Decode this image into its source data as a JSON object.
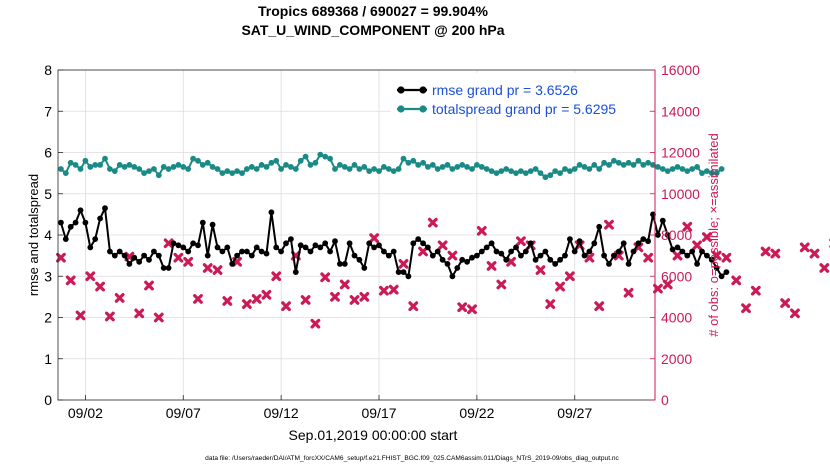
{
  "chart_data": {
    "type": "line",
    "title_line1": "Tropics 689368 / 690027 = 99.904%",
    "title_line2": "SAT_U_WIND_COMPONENT @ 200 hPa",
    "ylabel_left": "rmse and totalspread",
    "ylabel_right": "# of obs: o=possible; ×=assimilated",
    "xlabel": "Sep.01,2019 00:00:00 start",
    "footnote": "data file: /Users/raeder/DAI/ATM_forcXX/CAM6_setup/f.e21.FHIST_BGC.f09_025.CAM6assim.011/Diags_NTrS_2019-09/obs_diag_output.nc",
    "xlim": [
      0.6,
      31.1
    ],
    "ylim_left": [
      0,
      8
    ],
    "ylim_right": [
      0,
      16000
    ],
    "yticks_left": [
      "0",
      "1",
      "2",
      "3",
      "4",
      "5",
      "6",
      "7",
      "8"
    ],
    "yticks_right": [
      "0",
      "2000",
      "4000",
      "6000",
      "8000",
      "10000",
      "12000",
      "14000",
      "16000"
    ],
    "xticks": [
      {
        "day": 2,
        "label": "09/02"
      },
      {
        "day": 7,
        "label": "09/07"
      },
      {
        "day": 12,
        "label": "09/12"
      },
      {
        "day": 17,
        "label": "09/17"
      },
      {
        "day": 22,
        "label": "09/22"
      },
      {
        "day": 27,
        "label": "09/27"
      }
    ],
    "x_start": 0.75,
    "x_step": 0.25,
    "series": [
      {
        "name": "rmse grand pr = 3.6526",
        "color": "#000000",
        "values": [
          4.3,
          3.9,
          4.2,
          4.3,
          4.6,
          4.3,
          3.7,
          3.9,
          4.4,
          4.65,
          3.6,
          3.5,
          3.6,
          3.5,
          3.3,
          3.45,
          3.35,
          3.5,
          3.4,
          3.6,
          3.5,
          3.2,
          3.2,
          3.8,
          3.75,
          3.7,
          3.6,
          3.8,
          3.75,
          4.3,
          3.5,
          4.25,
          3.7,
          3.6,
          3.7,
          3.3,
          3.5,
          3.6,
          3.6,
          3.5,
          3.7,
          3.6,
          3.55,
          4.55,
          3.7,
          3.6,
          3.8,
          3.9,
          3.1,
          3.75,
          3.7,
          3.6,
          3.75,
          3.7,
          3.8,
          3.6,
          3.85,
          3.3,
          3.3,
          3.8,
          3.5,
          3.4,
          3.2,
          3.8,
          3.7,
          3.75,
          3.6,
          3.5,
          3.6,
          3.1,
          3.1,
          3.0,
          3.8,
          3.9,
          3.8,
          3.7,
          3.5,
          3.6,
          3.4,
          3.3,
          3.0,
          3.2,
          3.4,
          3.35,
          3.45,
          3.5,
          3.6,
          3.7,
          3.8,
          3.6,
          3.55,
          3.4,
          3.6,
          3.7,
          3.5,
          3.6,
          3.8,
          3.4,
          3.5,
          3.6,
          3.4,
          3.3,
          3.4,
          3.5,
          3.9,
          3.6,
          3.85,
          3.5,
          3.6,
          3.8,
          4.2,
          3.5,
          3.3,
          3.5,
          3.6,
          3.8,
          3.3,
          3.6,
          3.8,
          3.9,
          3.85,
          4.5,
          4.0,
          4.35,
          4.0,
          3.65,
          3.7,
          3.6,
          3.5,
          3.6,
          3.3,
          3.6,
          3.5,
          3.4,
          3.2,
          3.0,
          3.1
        ]
      },
      {
        "name": "totalspread grand pr = 5.6295",
        "color": "#1a8a86",
        "values": [
          5.6,
          5.5,
          5.75,
          5.7,
          5.6,
          5.8,
          5.65,
          5.7,
          5.7,
          5.85,
          5.6,
          5.55,
          5.7,
          5.65,
          5.7,
          5.65,
          5.6,
          5.5,
          5.55,
          5.6,
          5.45,
          5.65,
          5.6,
          5.65,
          5.7,
          5.65,
          5.6,
          5.85,
          5.8,
          5.7,
          5.75,
          5.65,
          5.6,
          5.5,
          5.55,
          5.5,
          5.55,
          5.5,
          5.6,
          5.65,
          5.6,
          5.7,
          5.65,
          5.75,
          5.8,
          5.6,
          5.7,
          5.65,
          5.6,
          5.8,
          5.9,
          5.7,
          5.75,
          5.95,
          5.9,
          5.85,
          5.6,
          5.7,
          5.65,
          5.6,
          5.7,
          5.6,
          5.65,
          5.55,
          5.6,
          5.55,
          5.65,
          5.6,
          5.55,
          5.6,
          5.85,
          5.75,
          5.8,
          5.7,
          5.75,
          5.65,
          5.7,
          5.6,
          5.65,
          5.7,
          5.6,
          5.65,
          5.7,
          5.65,
          5.6,
          5.7,
          5.65,
          5.6,
          5.55,
          5.5,
          5.55,
          5.6,
          5.55,
          5.5,
          5.55,
          5.5,
          5.55,
          5.6,
          5.5,
          5.4,
          5.45,
          5.55,
          5.5,
          5.6,
          5.55,
          5.6,
          5.7,
          5.65,
          5.6,
          5.7,
          5.6,
          5.75,
          5.7,
          5.8,
          5.75,
          5.7,
          5.75,
          5.7,
          5.8,
          5.7,
          5.75,
          5.7,
          5.65,
          5.6,
          5.55,
          5.6,
          5.65,
          5.6,
          5.55,
          5.6,
          5.65,
          5.5,
          5.55,
          5.5,
          5.5,
          5.6
        ]
      }
    ],
    "obs_series": {
      "name": "# of obs assimilated",
      "color": "#cc1a56",
      "x_start": 0.75,
      "x_step": 0.5,
      "values": [
        6900,
        5800,
        4100,
        6000,
        5500,
        4050,
        4950,
        6950,
        4200,
        5550,
        4000,
        7600,
        6900,
        6700,
        4900,
        6400,
        6300,
        4800,
        6700,
        4650,
        4900,
        5100,
        6000,
        4550,
        7000,
        4850,
        3700,
        5950,
        5000,
        5600,
        4850,
        5000,
        7850,
        5300,
        5350,
        6600,
        4550,
        7200,
        8600,
        7500,
        7000,
        4500,
        4400,
        8200,
        6500,
        5600,
        6700,
        7700,
        7500,
        6300,
        4650,
        5500,
        6000,
        7500,
        6900,
        4550,
        8500,
        7000,
        5200,
        7400,
        6900,
        5400,
        5600,
        7000,
        8400,
        7500,
        7900,
        7000,
        6900,
        5800,
        4450,
        5300,
        7200,
        7100,
        4700,
        4200,
        7400,
        7100,
        6400,
        7600,
        5300,
        6400,
        6300,
        4900,
        5400,
        7000,
        4350,
        4800,
        7900,
        4800,
        6700,
        5300,
        6900,
        4300,
        5500,
        3400,
        6500,
        4800,
        6700,
        4900,
        5800,
        6400,
        5500,
        6000,
        0
      ]
    }
  }
}
